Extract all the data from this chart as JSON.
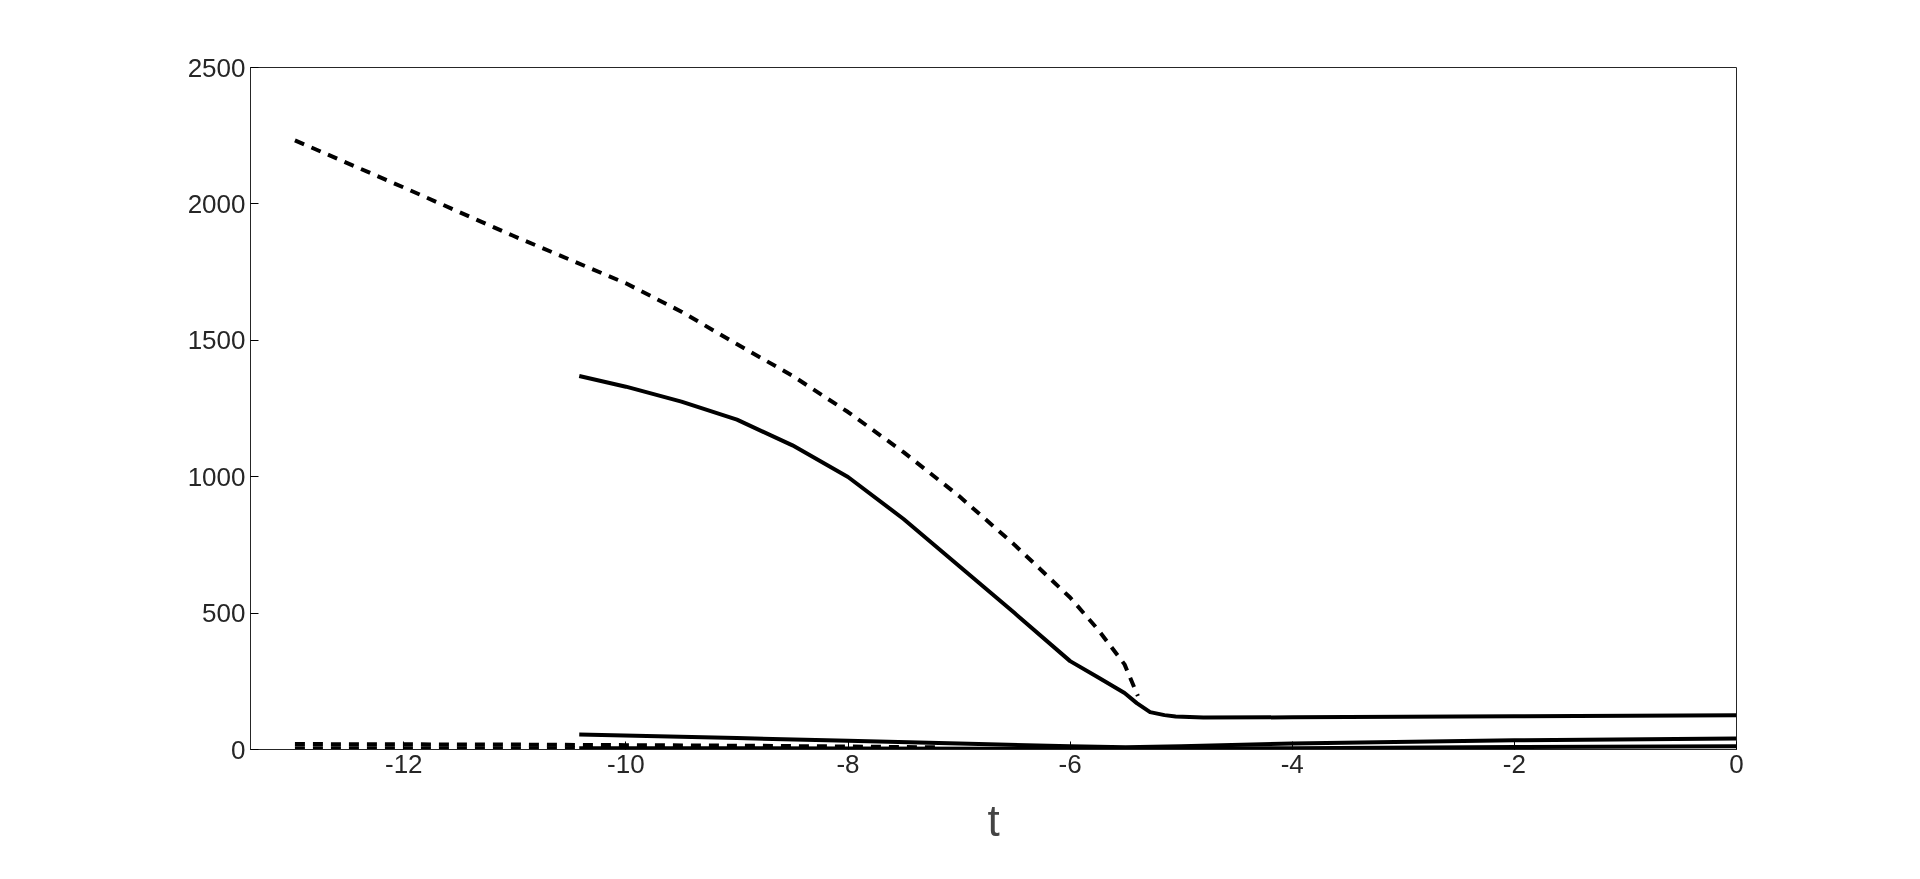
{
  "chart_data": {
    "type": "line",
    "xlabel": "t",
    "xlim": [
      -13.38,
      0
    ],
    "ylim": [
      0,
      2500
    ],
    "xticks": [
      -12,
      -10,
      -8,
      -6,
      -4,
      -2,
      0
    ],
    "yticks": [
      0,
      500,
      1000,
      1500,
      2000,
      2500
    ],
    "grid": false,
    "series": [
      {
        "color": "#000000",
        "line_style": "dashed",
        "x": [
          -12.98,
          -12,
          -11.02,
          -10,
          -9.5,
          -9.01,
          -8.5,
          -8,
          -7.5,
          -7,
          -6.5,
          -6,
          -5.75,
          -5.51,
          -5.39
        ],
        "values": [
          2233,
          2060,
          1884,
          1709,
          1605,
          1488,
          1370,
          1237,
          1090,
          929,
          750,
          557,
          440,
          312,
          196
        ]
      },
      {
        "color": "#000000",
        "line_style": "solid",
        "x": [
          -10.42,
          -10,
          -9.5,
          -9,
          -8.5,
          -8,
          -7.5,
          -7,
          -6.5,
          -6,
          -5.75,
          -5.51,
          -5.4,
          -5.28,
          -5.15,
          -5.05,
          -4.8,
          -4,
          -2,
          0
        ],
        "values": [
          1369,
          1330,
          1275,
          1209,
          1115,
          999,
          845,
          673,
          500,
          324,
          265,
          207,
          170,
          137,
          126,
          121,
          117,
          118,
          122,
          126
        ]
      },
      {
        "color": "#000000",
        "line_style": "solid",
        "x": [
          -10.42,
          -9,
          -8,
          -7,
          -6,
          -5.5,
          -5,
          -4,
          -2,
          0
        ],
        "values": [
          55,
          42,
          32,
          22,
          12,
          8,
          12,
          22,
          34,
          40
        ]
      },
      {
        "color": "#000000",
        "line_style": "solid",
        "x": [
          -10.42,
          -8,
          -6,
          -5.5,
          -4,
          -2,
          0
        ],
        "values": [
          5,
          4,
          2,
          2,
          5,
          9,
          12
        ]
      },
      {
        "color": "#000000",
        "line_style": "dashed",
        "x": [
          -12.98,
          -12,
          -11,
          -10,
          -9,
          -8,
          -7.2
        ],
        "values": [
          20,
          19,
          18,
          16,
          14,
          11,
          8
        ]
      },
      {
        "color": "#000000",
        "line_style": "dashed",
        "x": [
          -12.98,
          -12,
          -11,
          -10,
          -9,
          -8,
          -7.2
        ],
        "values": [
          5,
          5,
          5,
          4,
          4,
          3,
          3
        ]
      }
    ]
  }
}
